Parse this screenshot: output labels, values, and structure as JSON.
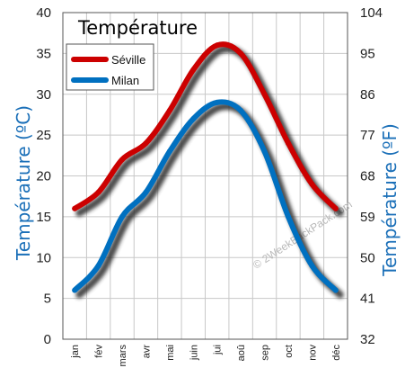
{
  "chart_data": {
    "type": "line",
    "title": "Température",
    "categories": [
      "jan",
      "fév",
      "mars",
      "avr",
      "mai",
      "juin",
      "jui",
      "aoû",
      "sep",
      "oct",
      "nov",
      "déc"
    ],
    "series": [
      {
        "name": "Séville",
        "color": "#cc0000",
        "values": [
          16,
          18,
          22,
          24,
          28,
          33,
          36,
          35,
          30,
          24,
          19,
          16
        ]
      },
      {
        "name": "Milan",
        "color": "#0070c0",
        "values": [
          6,
          9,
          15,
          18,
          23,
          27,
          29,
          28,
          23,
          15,
          9,
          6
        ]
      }
    ],
    "ylabel_left": "Température (ºC)",
    "ylabel_right": "Température (ºF)",
    "ylim": [
      0,
      40
    ],
    "yticks_left": [
      "0",
      "5",
      "10",
      "15",
      "20",
      "25",
      "30",
      "35",
      "40"
    ],
    "yticks_right": [
      "32",
      "41",
      "50",
      "59",
      "68",
      "77",
      "86",
      "95",
      "104"
    ],
    "grid": true,
    "legend_position": "top-left"
  },
  "watermark": "© 2WeekBackPack.com"
}
